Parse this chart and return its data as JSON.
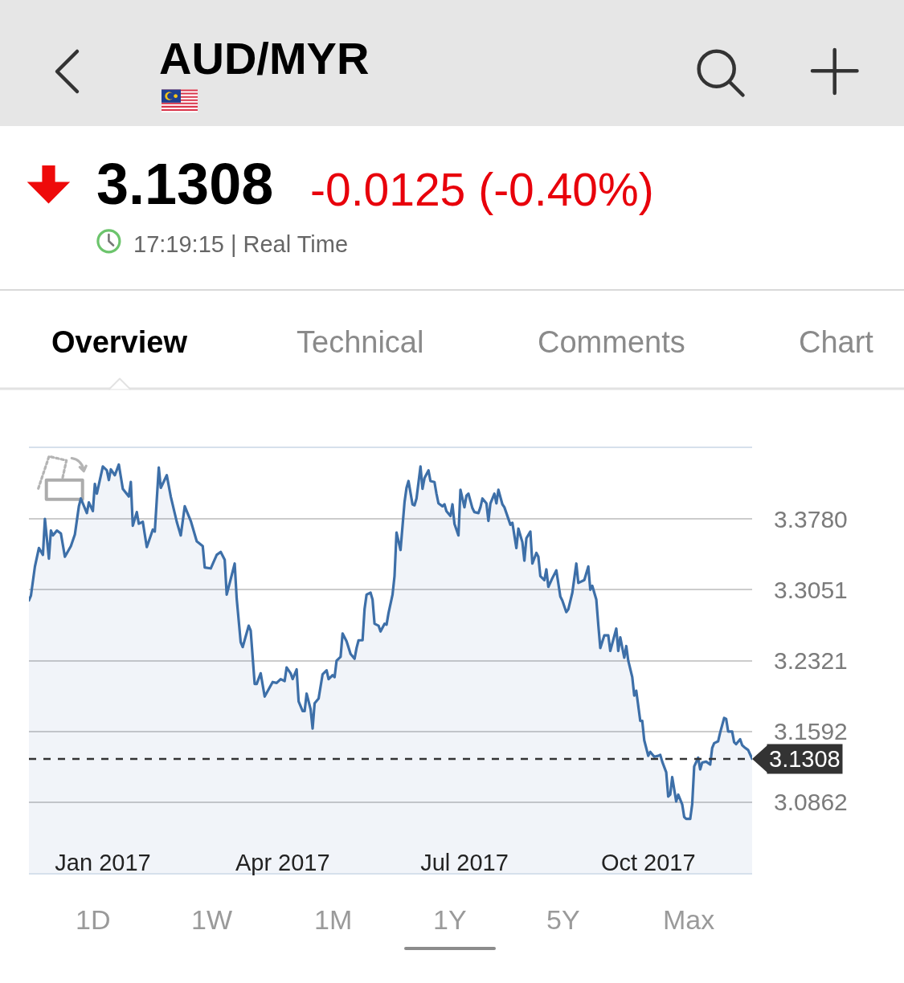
{
  "chart_data": {
    "type": "area",
    "title": "AUD/MYR",
    "annotations": [
      "3.1308",
      "-0.0125 (-0.40%)",
      "17:19:15 | Real Time",
      "Overview",
      "Technical",
      "Comments",
      "Chart",
      "1D",
      "1W",
      "1M",
      "1Y",
      "5Y",
      "Max"
    ],
    "x": [
      "2016-11-25",
      "2016-11-26",
      "2016-11-28",
      "2016-11-30",
      "2016-12-02",
      "2016-12-03",
      "2016-12-05",
      "2016-12-06",
      "2016-12-07",
      "2016-12-09",
      "2016-12-11",
      "2016-12-13",
      "2016-12-16",
      "2016-12-18",
      "2016-12-20",
      "2016-12-21",
      "2016-12-24",
      "2016-12-25",
      "2016-12-27",
      "2016-12-28",
      "2016-12-29",
      "2017-01-01",
      "2017-01-03",
      "2017-01-04",
      "2017-01-05",
      "2017-01-07",
      "2017-01-09",
      "2017-01-11",
      "2017-01-14",
      "2017-01-15",
      "2017-01-16",
      "2017-01-18",
      "2017-01-19",
      "2017-01-21",
      "2017-01-23",
      "2017-01-26",
      "2017-01-27",
      "2017-01-29",
      "2017-01-30",
      "2017-02-02",
      "2017-02-04",
      "2017-02-07",
      "2017-02-09",
      "2017-02-11",
      "2017-02-14",
      "2017-02-17",
      "2017-02-20",
      "2017-02-21",
      "2017-02-24",
      "2017-02-27",
      "2017-03-01",
      "2017-03-03",
      "2017-03-04",
      "2017-03-08",
      "2017-03-09",
      "2017-03-11",
      "2017-03-12",
      "2017-03-15",
      "2017-03-16",
      "2017-03-18",
      "2017-03-19",
      "2017-03-21",
      "2017-03-23",
      "2017-03-27",
      "2017-03-29",
      "2017-03-31",
      "2017-04-02",
      "2017-04-03",
      "2017-04-05",
      "2017-04-06",
      "2017-04-08",
      "2017-04-09",
      "2017-04-11",
      "2017-04-12",
      "2017-04-13",
      "2017-04-15",
      "2017-04-16",
      "2017-04-17",
      "2017-04-19",
      "2017-04-21",
      "2017-04-23",
      "2017-04-24",
      "2017-04-26",
      "2017-04-27",
      "2017-04-28",
      "2017-04-30",
      "2017-05-01",
      "2017-05-03",
      "2017-05-05",
      "2017-05-07",
      "2017-05-08",
      "2017-05-09",
      "2017-05-11",
      "2017-05-12",
      "2017-05-13",
      "2017-05-15",
      "2017-05-16",
      "2017-05-17",
      "2017-05-19",
      "2017-05-20",
      "2017-05-22",
      "2017-05-23",
      "2017-05-24",
      "2017-05-26",
      "2017-05-27",
      "2017-05-28",
      "2017-05-30",
      "2017-06-01",
      "2017-06-02",
      "2017-06-03",
      "2017-06-05",
      "2017-06-06",
      "2017-06-07",
      "2017-06-09",
      "2017-06-10",
      "2017-06-11",
      "2017-06-13",
      "2017-06-14",
      "2017-06-16",
      "2017-06-17",
      "2017-06-18",
      "2017-06-20",
      "2017-06-21",
      "2017-06-22",
      "2017-06-24",
      "2017-06-25",
      "2017-06-26",
      "2017-06-28",
      "2017-06-29",
      "2017-07-01",
      "2017-07-02",
      "2017-07-03",
      "2017-07-05",
      "2017-07-06",
      "2017-07-08",
      "2017-07-09",
      "2017-07-10",
      "2017-07-12",
      "2017-07-13",
      "2017-07-14",
      "2017-07-16",
      "2017-07-17",
      "2017-07-18",
      "2017-07-20",
      "2017-07-21",
      "2017-07-22",
      "2017-07-24",
      "2017-07-25",
      "2017-07-27",
      "2017-07-28",
      "2017-07-30",
      "2017-07-31",
      "2017-08-01",
      "2017-08-03",
      "2017-08-04",
      "2017-08-06",
      "2017-08-07",
      "2017-08-08",
      "2017-08-10",
      "2017-08-11",
      "2017-08-12",
      "2017-08-14",
      "2017-08-16",
      "2017-08-18",
      "2017-08-19",
      "2017-08-21",
      "2017-08-22",
      "2017-08-24",
      "2017-08-26",
      "2017-08-27",
      "2017-08-30",
      "2017-09-01",
      "2017-09-02",
      "2017-09-03",
      "2017-09-05",
      "2017-09-06",
      "2017-09-07",
      "2017-09-09",
      "2017-09-11",
      "2017-09-12",
      "2017-09-15",
      "2017-09-16",
      "2017-09-17",
      "2017-09-19",
      "2017-09-20",
      "2017-09-21",
      "2017-09-23",
      "2017-09-24",
      "2017-09-25",
      "2017-09-27",
      "2017-09-28",
      "2017-09-29",
      "2017-10-01",
      "2017-10-02",
      "2017-10-04",
      "2017-10-06",
      "2017-10-07",
      "2017-10-08",
      "2017-10-10",
      "2017-10-11",
      "2017-10-12",
      "2017-10-13",
      "2017-10-15",
      "2017-10-16",
      "2017-10-18",
      "2017-10-19",
      "2017-10-20",
      "2017-10-22",
      "2017-10-23",
      "2017-10-24",
      "2017-10-26",
      "2017-10-27",
      "2017-10-28",
      "2017-10-30",
      "2017-11-01",
      "2017-11-02",
      "2017-11-03",
      "2017-11-05",
      "2017-11-06",
      "2017-11-08",
      "2017-11-09",
      "2017-11-10",
      "2017-11-12",
      "2017-11-13",
      "2017-11-14",
      "2017-11-16",
      "2017-11-17",
      "2017-11-18",
      "2017-11-20",
      "2017-11-22"
    ],
    "series": [
      {
        "color": "#3d6fa8",
        "values": [
          3.294,
          3.299,
          3.329,
          3.348,
          3.341,
          3.378,
          3.337,
          3.366,
          3.361,
          3.366,
          3.363,
          3.339,
          3.35,
          3.362,
          3.391,
          3.399,
          3.384,
          3.395,
          3.386,
          3.414,
          3.404,
          3.432,
          3.428,
          3.418,
          3.429,
          3.423,
          3.434,
          3.409,
          3.401,
          3.416,
          3.371,
          3.385,
          3.373,
          3.375,
          3.349,
          3.367,
          3.365,
          3.431,
          3.41,
          3.423,
          3.401,
          3.375,
          3.361,
          3.391,
          3.376,
          3.355,
          3.35,
          3.328,
          3.327,
          3.341,
          3.344,
          3.336,
          3.3,
          3.332,
          3.296,
          3.251,
          3.246,
          3.268,
          3.263,
          3.208,
          3.208,
          3.219,
          3.195,
          3.21,
          3.209,
          3.213,
          3.211,
          3.225,
          3.219,
          3.213,
          3.223,
          3.19,
          3.18,
          3.18,
          3.198,
          3.182,
          3.162,
          3.188,
          3.193,
          3.218,
          3.222,
          3.213,
          3.217,
          3.215,
          3.232,
          3.236,
          3.26,
          3.252,
          3.239,
          3.234,
          3.245,
          3.253,
          3.253,
          3.285,
          3.3,
          3.302,
          3.295,
          3.27,
          3.268,
          3.262,
          3.27,
          3.269,
          3.281,
          3.3,
          3.319,
          3.364,
          3.346,
          3.395,
          3.41,
          3.417,
          3.393,
          3.392,
          3.399,
          3.432,
          3.409,
          3.42,
          3.428,
          3.417,
          3.416,
          3.404,
          3.394,
          3.391,
          3.393,
          3.386,
          3.381,
          3.393,
          3.373,
          3.361,
          3.408,
          3.39,
          3.402,
          3.404,
          3.389,
          3.385,
          3.384,
          3.39,
          3.399,
          3.394,
          3.376,
          3.394,
          3.404,
          3.394,
          3.408,
          3.393,
          3.39,
          3.384,
          3.372,
          3.374,
          3.348,
          3.368,
          3.354,
          3.335,
          3.358,
          3.365,
          3.332,
          3.343,
          3.339,
          3.319,
          3.315,
          3.326,
          3.308,
          3.317,
          3.325,
          3.298,
          3.294,
          3.282,
          3.285,
          3.302,
          3.332,
          3.312,
          3.315,
          3.329,
          3.305,
          3.309,
          3.295,
          3.269,
          3.245,
          3.258,
          3.258,
          3.242,
          3.265,
          3.242,
          3.256,
          3.235,
          3.247,
          3.232,
          3.215,
          3.196,
          3.201,
          3.17,
          3.17,
          3.15,
          3.134,
          3.138,
          3.133,
          3.134,
          3.135,
          3.128,
          3.117,
          3.092,
          3.094,
          3.112,
          3.087,
          3.094,
          3.084,
          3.071,
          3.069,
          3.069,
          3.084,
          3.123,
          3.132,
          3.12,
          3.127,
          3.128,
          3.125,
          3.142,
          3.147,
          3.149,
          3.158,
          3.173,
          3.172,
          3.159,
          3.159,
          3.148,
          3.146,
          3.151,
          3.145,
          3.143,
          3.14,
          3.131
        ]
      }
    ],
    "xlim": [
      "2016-11-25",
      "2017-11-22"
    ],
    "xticks": [
      {
        "value": "2017-01-01",
        "label": "Jan 2017"
      },
      {
        "value": "2017-04-01",
        "label": "Apr 2017"
      },
      {
        "value": "2017-07-01",
        "label": "Jul 2017"
      },
      {
        "value": "2017-10-01",
        "label": "Oct 2017"
      }
    ],
    "ylim": [
      3.0133,
      3.4509
    ],
    "yticks": [
      3.0862,
      3.1592,
      3.2321,
      3.3051,
      {
        "value": 3.378,
        "label": "3.3780"
      }
    ],
    "ref_lines": [
      {
        "axis": "y",
        "value": 3.1308,
        "label": "3.1308",
        "color": "#333333",
        "line_style": "dashed"
      }
    ],
    "grid": "y"
  }
}
